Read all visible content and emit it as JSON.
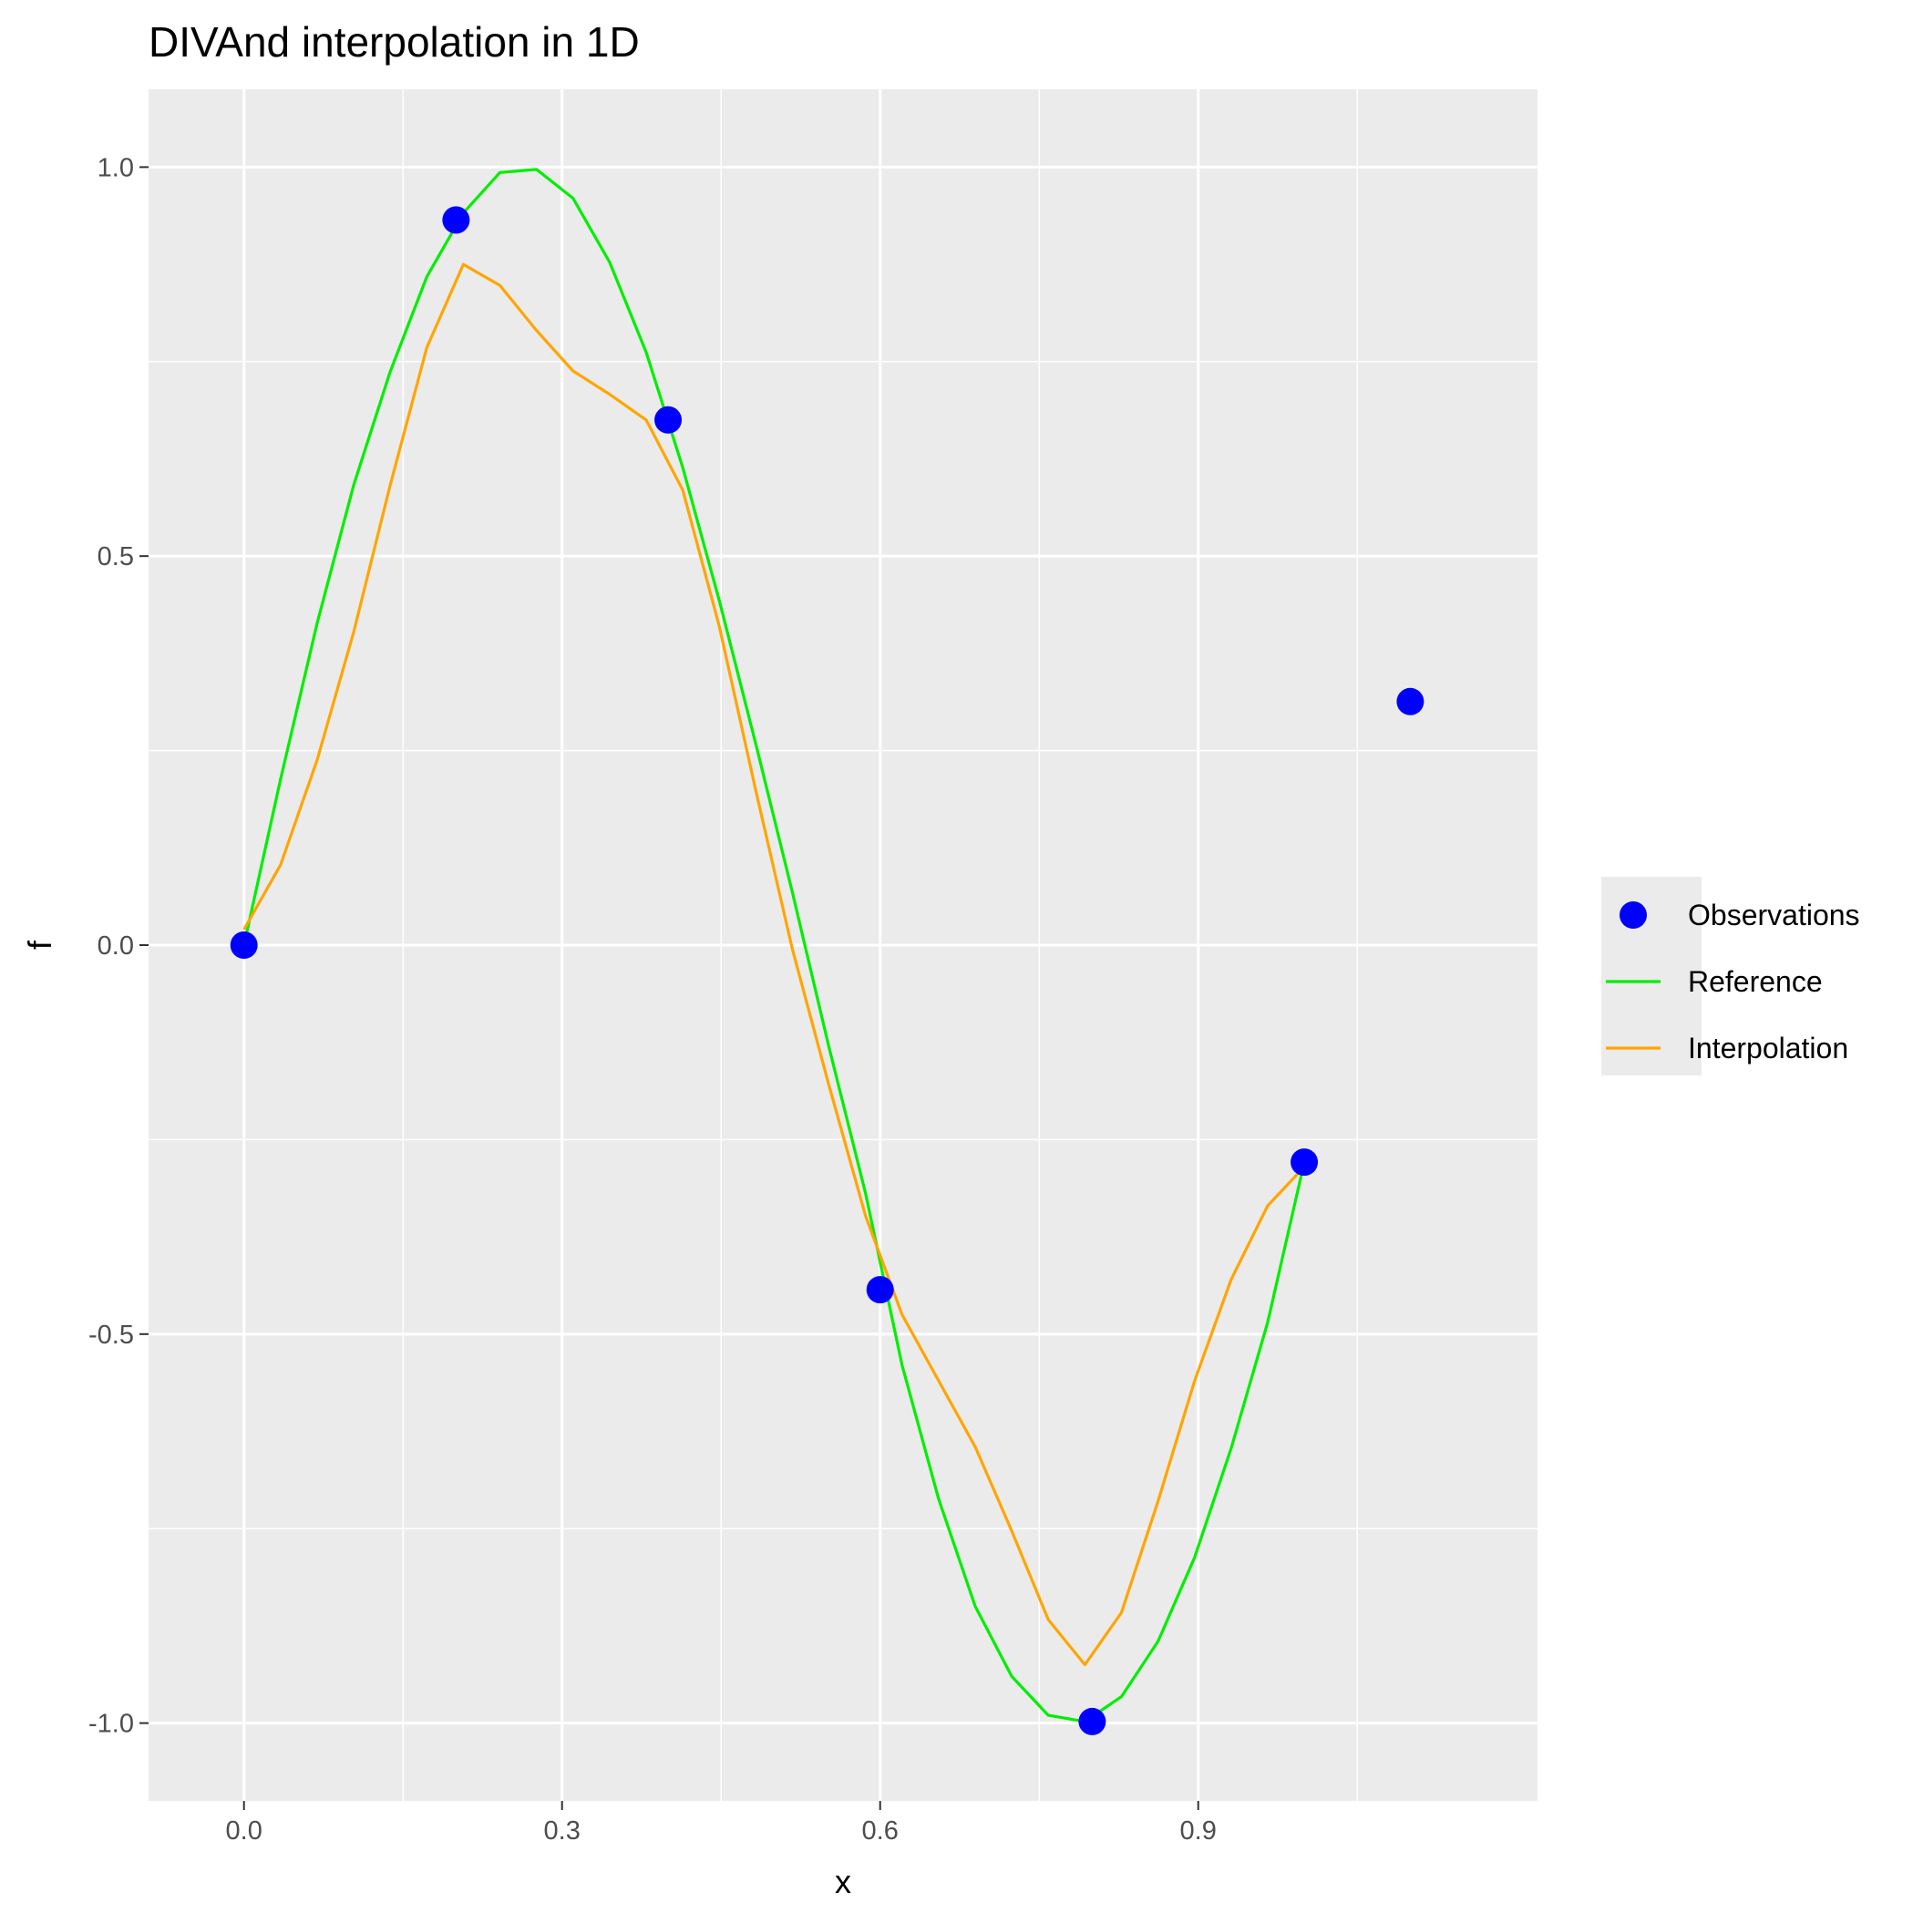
{
  "chart_data": {
    "type": "line",
    "title": "DIVAnd interpolation in 1D",
    "xlabel": "x",
    "ylabel": "f",
    "xlim": [
      -0.09,
      1.22
    ],
    "ylim": [
      -1.1,
      1.1
    ],
    "x_ticks": [
      {
        "value": 0.0,
        "label": "0.0"
      },
      {
        "value": 0.3,
        "label": "0.3"
      },
      {
        "value": 0.6,
        "label": "0.6"
      },
      {
        "value": 0.9,
        "label": "0.9"
      }
    ],
    "y_ticks": [
      {
        "value": -1.0,
        "label": "-1.0"
      },
      {
        "value": -0.5,
        "label": "-0.5"
      },
      {
        "value": 0.0,
        "label": "0.0"
      },
      {
        "value": 0.5,
        "label": "0.5"
      },
      {
        "value": 1.0,
        "label": "1.0"
      }
    ],
    "grid": true,
    "legend_position": "right",
    "series": [
      {
        "name": "Observations",
        "kind": "points",
        "color": "#0000ff",
        "x": [
          0.0,
          0.2,
          0.4,
          0.6,
          0.8,
          1.0,
          1.1
        ],
        "y": [
          0.0,
          0.932,
          0.675,
          -0.443,
          -0.998,
          -0.279,
          0.313
        ]
      },
      {
        "name": "Reference",
        "kind": "line",
        "color": "#00ee00",
        "x": [
          0.0,
          0.0345,
          0.069,
          0.1034,
          0.1379,
          0.1724,
          0.2069,
          0.2414,
          0.2759,
          0.3103,
          0.3448,
          0.3793,
          0.4138,
          0.4483,
          0.4828,
          0.5172,
          0.5517,
          0.5862,
          0.6207,
          0.6552,
          0.6897,
          0.7241,
          0.7586,
          0.7931,
          0.8276,
          0.8621,
          0.8966,
          0.931,
          0.9655,
          1.0
        ],
        "y": [
          0.0,
          0.213,
          0.414,
          0.591,
          0.737,
          0.859,
          0.941,
          0.993,
          0.997,
          0.96,
          0.878,
          0.762,
          0.614,
          0.443,
          0.258,
          0.068,
          -0.131,
          -0.319,
          -0.54,
          -0.712,
          -0.85,
          -0.94,
          -0.99,
          -0.998,
          -0.966,
          -0.895,
          -0.787,
          -0.647,
          -0.485,
          -0.279
        ]
      },
      {
        "name": "Interpolation",
        "kind": "line",
        "color": "#ffa500",
        "x": [
          0.0,
          0.0345,
          0.069,
          0.1034,
          0.1379,
          0.1724,
          0.2069,
          0.2414,
          0.2759,
          0.3103,
          0.3448,
          0.3793,
          0.4138,
          0.4483,
          0.4828,
          0.5172,
          0.5517,
          0.5862,
          0.6207,
          0.6552,
          0.6897,
          0.7241,
          0.7586,
          0.7931,
          0.8276,
          0.8621,
          0.8966,
          0.931,
          0.9655,
          1.0
        ],
        "y": [
          0.02,
          0.103,
          0.238,
          0.402,
          0.591,
          0.768,
          0.875,
          0.848,
          0.79,
          0.738,
          0.708,
          0.675,
          0.585,
          0.41,
          0.198,
          -0.005,
          -0.18,
          -0.348,
          -0.475,
          -0.56,
          -0.645,
          -0.753,
          -0.867,
          -0.925,
          -0.858,
          -0.715,
          -0.56,
          -0.43,
          -0.335,
          -0.285
        ]
      }
    ]
  }
}
